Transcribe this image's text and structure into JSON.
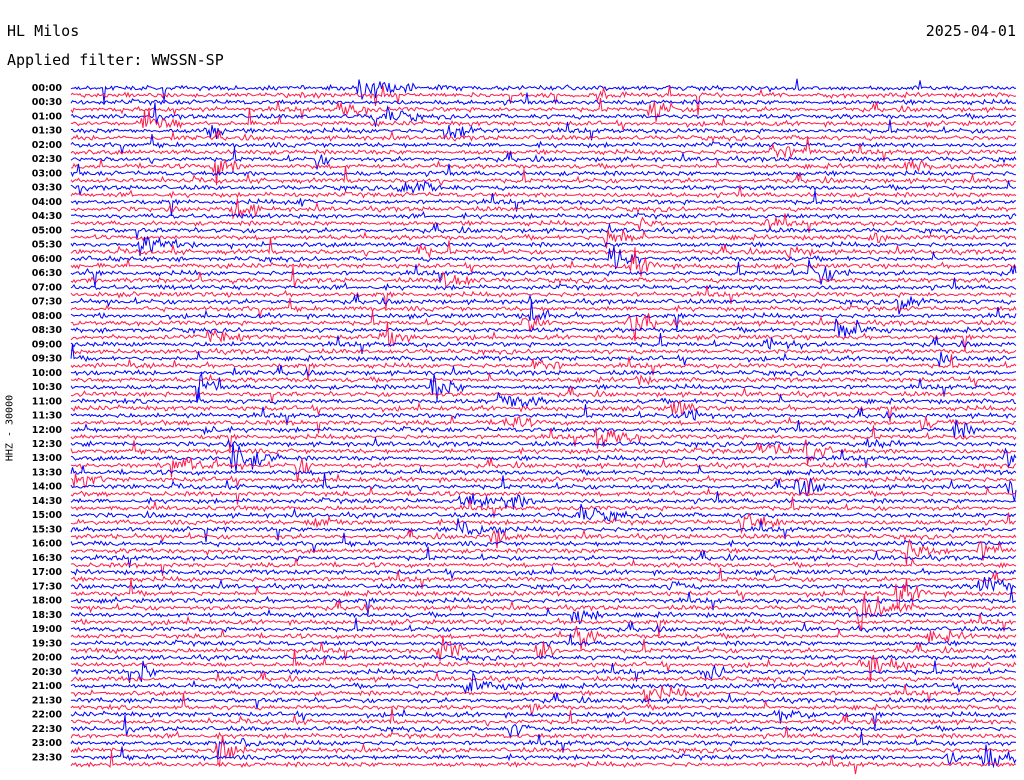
{
  "header": {
    "station": "HL Milos",
    "date": "2025-04-01",
    "filter": "Applied filter: WWSSN-SP"
  },
  "side_label": "HHZ - 30000",
  "chart_data": {
    "type": "line",
    "title": "HL Milos",
    "subtitle": "Applied filter: WWSSN-SP",
    "ylabel": "HHZ - 30000",
    "xlabel": "",
    "date": "2025-04-01",
    "grid": false,
    "series_colors": [
      "#0000ff",
      "#ff1a4a"
    ],
    "row_interval_minutes": 15,
    "time_labels": [
      "00:00",
      "00:30",
      "01:00",
      "01:30",
      "02:00",
      "02:30",
      "03:00",
      "03:30",
      "04:00",
      "04:30",
      "05:00",
      "05:30",
      "06:00",
      "06:30",
      "07:00",
      "07:30",
      "08:00",
      "08:30",
      "09:00",
      "09:30",
      "10:00",
      "10:30",
      "11:00",
      "11:30",
      "12:00",
      "12:30",
      "13:00",
      "13:30",
      "14:00",
      "14:30",
      "15:00",
      "15:30",
      "16:00",
      "16:30",
      "17:00",
      "17:30",
      "18:00",
      "18:30",
      "19:00",
      "19:30",
      "20:00",
      "20:30",
      "21:00",
      "21:30",
      "22:00",
      "22:30",
      "23:00",
      "23:30"
    ]
  }
}
